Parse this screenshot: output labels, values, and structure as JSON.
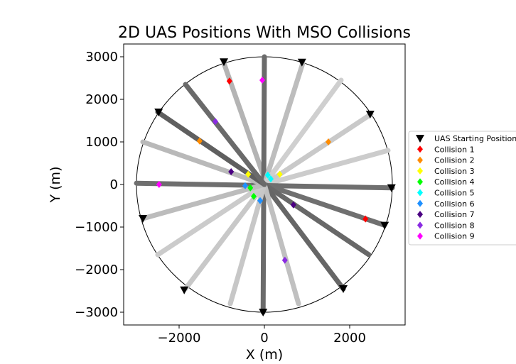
{
  "chart_data": {
    "type": "scatter",
    "title": "2D UAS Positions With MSO Collisions",
    "xlabel": "X (m)",
    "ylabel": "Y (m)",
    "xlim": [
      -3300,
      3300
    ],
    "ylim": [
      -3300,
      3300
    ],
    "xticks": [
      -2000,
      0,
      2000
    ],
    "yticks": [
      -3000,
      -2000,
      -1000,
      0,
      1000,
      2000,
      3000
    ],
    "xtick_labels": [
      "−2000",
      "0",
      "2000"
    ],
    "ytick_labels": [
      "−3000",
      "−2000",
      "−1000",
      "0",
      "1000",
      "2000",
      "3000"
    ],
    "boundary_radius": 3000,
    "grid": false,
    "legend_position": "right",
    "legend": [
      {
        "label": "UAS Starting Position",
        "marker": "triangle-down",
        "color": "#000000"
      },
      {
        "label": "Collision 1",
        "marker": "diamond",
        "color": "#ff0000"
      },
      {
        "label": "Collision 2",
        "marker": "diamond",
        "color": "#ff8c00"
      },
      {
        "label": "Collision 3",
        "marker": "diamond",
        "color": "#ffff00"
      },
      {
        "label": "Collision 4",
        "marker": "diamond",
        "color": "#00ff00"
      },
      {
        "label": "Collision 5",
        "marker": "diamond",
        "color": "#00ffff"
      },
      {
        "label": "Collision 6",
        "marker": "diamond",
        "color": "#1e90ff"
      },
      {
        "label": "Collision 7",
        "marker": "diamond",
        "color": "#4b0082"
      },
      {
        "label": "Collision 8",
        "marker": "diamond",
        "color": "#8a2be2"
      },
      {
        "label": "Collision 9",
        "marker": "diamond",
        "color": "#ff00ff"
      }
    ],
    "paths": [
      {
        "x1": -950,
        "y1": 2850,
        "x2": 50,
        "y2": 0,
        "color": "#b4b4b4",
        "width": 7
      },
      {
        "x1": 0,
        "y1": 3000,
        "x2": -30,
        "y2": -3000,
        "color": "#6b6b6b",
        "width": 7
      },
      {
        "x1": 900,
        "y1": 2850,
        "x2": 0,
        "y2": 0,
        "color": "#bdbdbd",
        "width": 7
      },
      {
        "x1": 1800,
        "y1": 2450,
        "x2": 0,
        "y2": 0,
        "color": "#cfcfcf",
        "width": 7
      },
      {
        "x1": 2500,
        "y1": 1650,
        "x2": 0,
        "y2": 0,
        "color": "#c9c9c9",
        "width": 7
      },
      {
        "x1": 2900,
        "y1": 800,
        "x2": 0,
        "y2": 0,
        "color": "#cccccc",
        "width": 7
      },
      {
        "x1": 3000,
        "y1": -80,
        "x2": -3000,
        "y2": 30,
        "color": "#6f6f6f",
        "width": 7
      },
      {
        "x1": 2800,
        "y1": -950,
        "x2": 0,
        "y2": 0,
        "color": "#707070",
        "width": 7
      },
      {
        "x1": 2450,
        "y1": -1650,
        "x2": 0,
        "y2": 0,
        "color": "#686868",
        "width": 7
      },
      {
        "x1": 1850,
        "y1": -2450,
        "x2": 0,
        "y2": 0,
        "color": "#666666",
        "width": 7
      },
      {
        "x1": 800,
        "y1": -2800,
        "x2": 0,
        "y2": 0,
        "color": "#c0c0c0",
        "width": 7
      },
      {
        "x1": -800,
        "y1": -2800,
        "x2": 0,
        "y2": 0,
        "color": "#c7c7c7",
        "width": 7
      },
      {
        "x1": -1850,
        "y1": -2450,
        "x2": 0,
        "y2": 0,
        "color": "#c8c8c8",
        "width": 7
      },
      {
        "x1": -2500,
        "y1": -1650,
        "x2": 0,
        "y2": 0,
        "color": "#cbcbcb",
        "width": 7
      },
      {
        "x1": -2850,
        "y1": -800,
        "x2": 0,
        "y2": 0,
        "color": "#bcbcbc",
        "width": 7
      },
      {
        "x1": -2850,
        "y1": 1000,
        "x2": 0,
        "y2": 0,
        "color": "#b9b9b9",
        "width": 7
      },
      {
        "x1": -2500,
        "y1": 1700,
        "x2": 0,
        "y2": 0,
        "color": "#5f5f5f",
        "width": 7
      },
      {
        "x1": -1850,
        "y1": 2350,
        "x2": 0,
        "y2": 0,
        "color": "#6a6a6a",
        "width": 7
      }
    ],
    "starting_positions": [
      {
        "x": -950,
        "y": 2880
      },
      {
        "x": -30,
        "y": -3000
      },
      {
        "x": 880,
        "y": 2870
      },
      {
        "x": 2480,
        "y": 1650
      },
      {
        "x": 2980,
        "y": -80
      },
      {
        "x": 2820,
        "y": -960
      },
      {
        "x": 1850,
        "y": -2450
      },
      {
        "x": -1880,
        "y": -2480
      },
      {
        "x": -2850,
        "y": -800
      },
      {
        "x": -2480,
        "y": 1700
      }
    ],
    "collisions": [
      {
        "name": "Collision 1",
        "color": "#ff0000",
        "points": [
          {
            "x": -820,
            "y": 2430
          },
          {
            "x": 2370,
            "y": -810
          }
        ]
      },
      {
        "name": "Collision 2",
        "color": "#ff8c00",
        "points": [
          {
            "x": -1520,
            "y": 1020
          },
          {
            "x": 1500,
            "y": 1000
          }
        ]
      },
      {
        "name": "Collision 3",
        "color": "#ffff00",
        "points": [
          {
            "x": -380,
            "y": 240
          },
          {
            "x": 360,
            "y": 240
          }
        ]
      },
      {
        "name": "Collision 4",
        "color": "#00ff00",
        "points": [
          {
            "x": -330,
            "y": -80
          },
          {
            "x": -250,
            "y": -280
          }
        ]
      },
      {
        "name": "Collision 5",
        "color": "#00ffff",
        "points": [
          {
            "x": 80,
            "y": 220
          },
          {
            "x": 150,
            "y": 130
          }
        ]
      },
      {
        "name": "Collision 6",
        "color": "#1e90ff",
        "points": [
          {
            "x": -450,
            "y": -30
          },
          {
            "x": -100,
            "y": -380
          }
        ]
      },
      {
        "name": "Collision 7",
        "color": "#4b0082",
        "points": [
          {
            "x": -780,
            "y": 300
          },
          {
            "x": 680,
            "y": -480
          }
        ]
      },
      {
        "name": "Collision 8",
        "color": "#8a2be2",
        "points": [
          {
            "x": -1150,
            "y": 1480
          },
          {
            "x": 480,
            "y": -1780
          }
        ]
      },
      {
        "name": "Collision 9",
        "color": "#ff00ff",
        "points": [
          {
            "x": -50,
            "y": 2450
          },
          {
            "x": -2470,
            "y": 0
          }
        ]
      }
    ]
  }
}
